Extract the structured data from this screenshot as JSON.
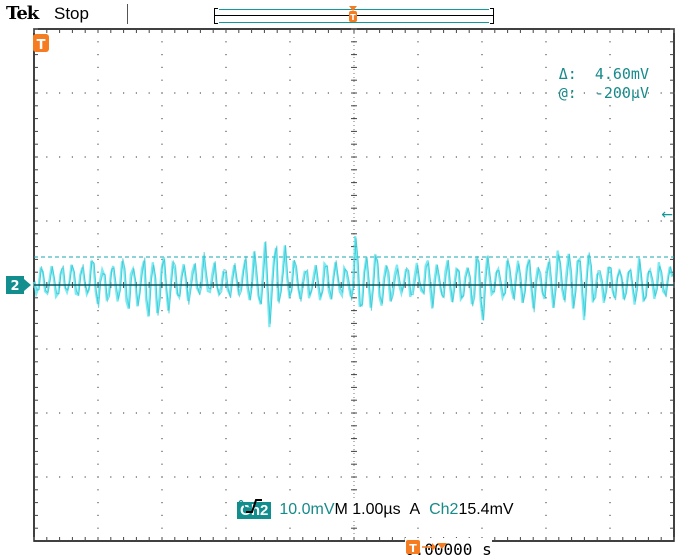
{
  "header": {
    "brand": "Tek",
    "acq_state": "Stop"
  },
  "trigger_marker": {
    "label": "T"
  },
  "channel_marker": {
    "label": "2"
  },
  "cursor": {
    "delta_label": "Δ:",
    "delta_value": "4.60mV",
    "at_label": "@:",
    "at_value": "-200µV"
  },
  "readout": {
    "channel": "Ch2",
    "volts_per_div": "10.0mV",
    "coupling_icon": "ac-coupling-icon",
    "timebase": "M 1.00µs",
    "trigger_mode": "A",
    "trigger_source": "Ch2",
    "trigger_slope_icon": "rising-edge-icon",
    "trigger_level": "15.4mV"
  },
  "trigger_position": {
    "icon": "trigger-position-icon",
    "value": "0.00000 s"
  },
  "colors": {
    "trace": "#4fe3ec",
    "trace_core": "#1fb8c6",
    "channel_accent": "#138e8e",
    "trigger_accent": "#f57c20"
  }
}
